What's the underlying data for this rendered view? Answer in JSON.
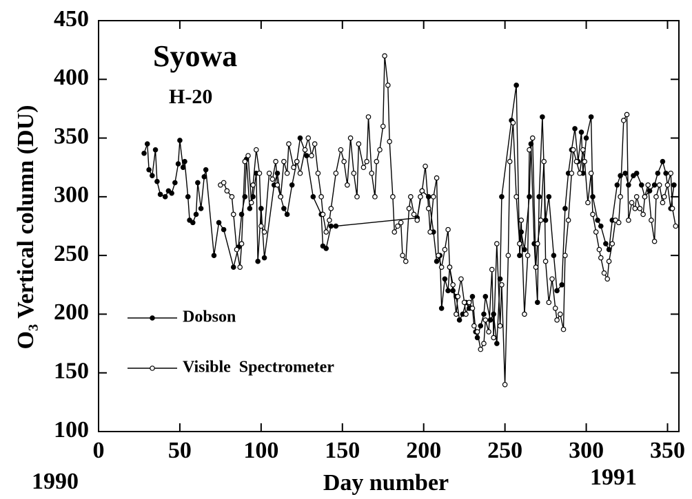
{
  "chart_data": {
    "type": "line",
    "title": "Syowa",
    "subtitle": "H-20",
    "x_label": "Day number",
    "y_label": "O₃ Vertical column (DU)",
    "annotations": [
      "1990",
      "1991"
    ],
    "xlim": [
      0,
      357
    ],
    "xticks": [
      0,
      50,
      100,
      150,
      200,
      250,
      300,
      350
    ],
    "ylim": [
      100,
      450
    ],
    "yticks": [
      100,
      150,
      200,
      250,
      300,
      350,
      400,
      450
    ],
    "grid": false,
    "legend": "lower left",
    "series": [
      {
        "name": "Dobson",
        "color": "#000000",
        "marker": "filled",
        "x": [
          28,
          30,
          31,
          33,
          35,
          36,
          38,
          41,
          43,
          45,
          47,
          49,
          50,
          52,
          53,
          55,
          56,
          58,
          60,
          61,
          63,
          65,
          66,
          71,
          74,
          77,
          83,
          86,
          88,
          90,
          91,
          93,
          95,
          97,
          98,
          100,
          102,
          108,
          110,
          112,
          114,
          116,
          119,
          122,
          124,
          128,
          132,
          137,
          138,
          140,
          143,
          146,
          196,
          199,
          203,
          206,
          208,
          210,
          211,
          213,
          215,
          216,
          218,
          220,
          222,
          224,
          226,
          228,
          230,
          232,
          233,
          235,
          237,
          238,
          241,
          243,
          245,
          247,
          248,
          254,
          257,
          259,
          260,
          262,
          265,
          266,
          268,
          270,
          271,
          273,
          275,
          277,
          280,
          282,
          285,
          287,
          289,
          291,
          293,
          295,
          297,
          298,
          300,
          303,
          304,
          307,
          309,
          312,
          314,
          316,
          319,
          321,
          324,
          326,
          329,
          331,
          334,
          336,
          339,
          342,
          344,
          347,
          349,
          352,
          354
        ],
        "values": [
          337,
          345,
          323,
          318,
          340,
          313,
          302,
          300,
          305,
          303,
          312,
          328,
          348,
          325,
          330,
          300,
          280,
          278,
          285,
          312,
          290,
          317,
          323,
          250,
          278,
          272,
          240,
          257,
          285,
          300,
          332,
          290,
          300,
          320,
          245,
          290,
          248,
          310,
          320,
          300,
          290,
          285,
          310,
          330,
          350,
          335,
          300,
          285,
          258,
          256,
          275,
          275,
          282,
          305,
          300,
          270,
          245,
          250,
          205,
          230,
          220,
          240,
          220,
          215,
          195,
          200,
          210,
          205,
          215,
          185,
          180,
          190,
          200,
          215,
          195,
          200,
          175,
          230,
          300,
          365,
          395,
          250,
          270,
          255,
          300,
          345,
          260,
          210,
          300,
          368,
          280,
          300,
          250,
          220,
          225,
          290,
          320,
          340,
          358,
          330,
          355,
          320,
          350,
          368,
          300,
          280,
          275,
          260,
          255,
          280,
          310,
          318,
          320,
          310,
          318,
          320,
          310,
          300,
          305,
          310,
          320,
          330,
          320,
          290,
          310
        ]
      },
      {
        "name": "Visible  Spectrometer",
        "color": "#000000",
        "marker": "open",
        "x": [
          75,
          77,
          79,
          82,
          83,
          85,
          87,
          88,
          90,
          92,
          94,
          95,
          97,
          99,
          100,
          102,
          105,
          107,
          109,
          110,
          112,
          114,
          116,
          117,
          120,
          122,
          124,
          127,
          129,
          131,
          133,
          135,
          137,
          138,
          140,
          142,
          143,
          146,
          149,
          151,
          153,
          155,
          157,
          159,
          160,
          163,
          165,
          166,
          168,
          170,
          171,
          173,
          175,
          176,
          178,
          179,
          181,
          182,
          184,
          186,
          187,
          189,
          191,
          192,
          194,
          196,
          198,
          199,
          201,
          203,
          204,
          206,
          208,
          209,
          211,
          213,
          215,
          216,
          218,
          220,
          221,
          223,
          225,
          226,
          228,
          230,
          231,
          233,
          235,
          237,
          238,
          240,
          242,
          243,
          245,
          247,
          248,
          250,
          252,
          253,
          255,
          257,
          259,
          260,
          262,
          264,
          265,
          267,
          269,
          270,
          272,
          274,
          275,
          277,
          279,
          281,
          282,
          284,
          286,
          287,
          289,
          291,
          292,
          294,
          296,
          298,
          299,
          301,
          303,
          304,
          306,
          308,
          309,
          311,
          313,
          314,
          316,
          318,
          320,
          321,
          323,
          325,
          326,
          328,
          330,
          331,
          333,
          335,
          336,
          338,
          340,
          342,
          343,
          345,
          347,
          348,
          350,
          352,
          353,
          355
        ],
        "values": [
          310,
          312,
          305,
          300,
          285,
          255,
          240,
          260,
          330,
          335,
          295,
          310,
          340,
          320,
          275,
          270,
          320,
          315,
          330,
          310,
          300,
          330,
          320,
          345,
          325,
          330,
          320,
          340,
          350,
          335,
          345,
          320,
          300,
          285,
          270,
          280,
          290,
          320,
          340,
          330,
          310,
          350,
          320,
          300,
          345,
          325,
          330,
          368,
          320,
          300,
          330,
          340,
          360,
          420,
          395,
          347,
          300,
          270,
          275,
          278,
          250,
          245,
          290,
          300,
          285,
          280,
          300,
          305,
          326,
          290,
          270,
          300,
          316,
          250,
          240,
          255,
          272,
          240,
          225,
          200,
          215,
          230,
          210,
          200,
          210,
          205,
          190,
          185,
          170,
          175,
          195,
          185,
          238,
          180,
          260,
          190,
          225,
          140,
          250,
          330,
          363,
          300,
          260,
          280,
          200,
          250,
          340,
          350,
          240,
          260,
          280,
          330,
          245,
          210,
          230,
          205,
          195,
          200,
          187,
          250,
          280,
          320,
          340,
          330,
          320,
          340,
          330,
          295,
          320,
          285,
          270,
          255,
          248,
          235,
          230,
          245,
          260,
          280,
          278,
          300,
          365,
          370,
          280,
          295,
          290,
          300,
          290,
          285,
          300,
          310,
          280,
          262,
          300,
          310,
          295,
          300,
          310,
          320,
          290,
          275
        ]
      }
    ]
  }
}
